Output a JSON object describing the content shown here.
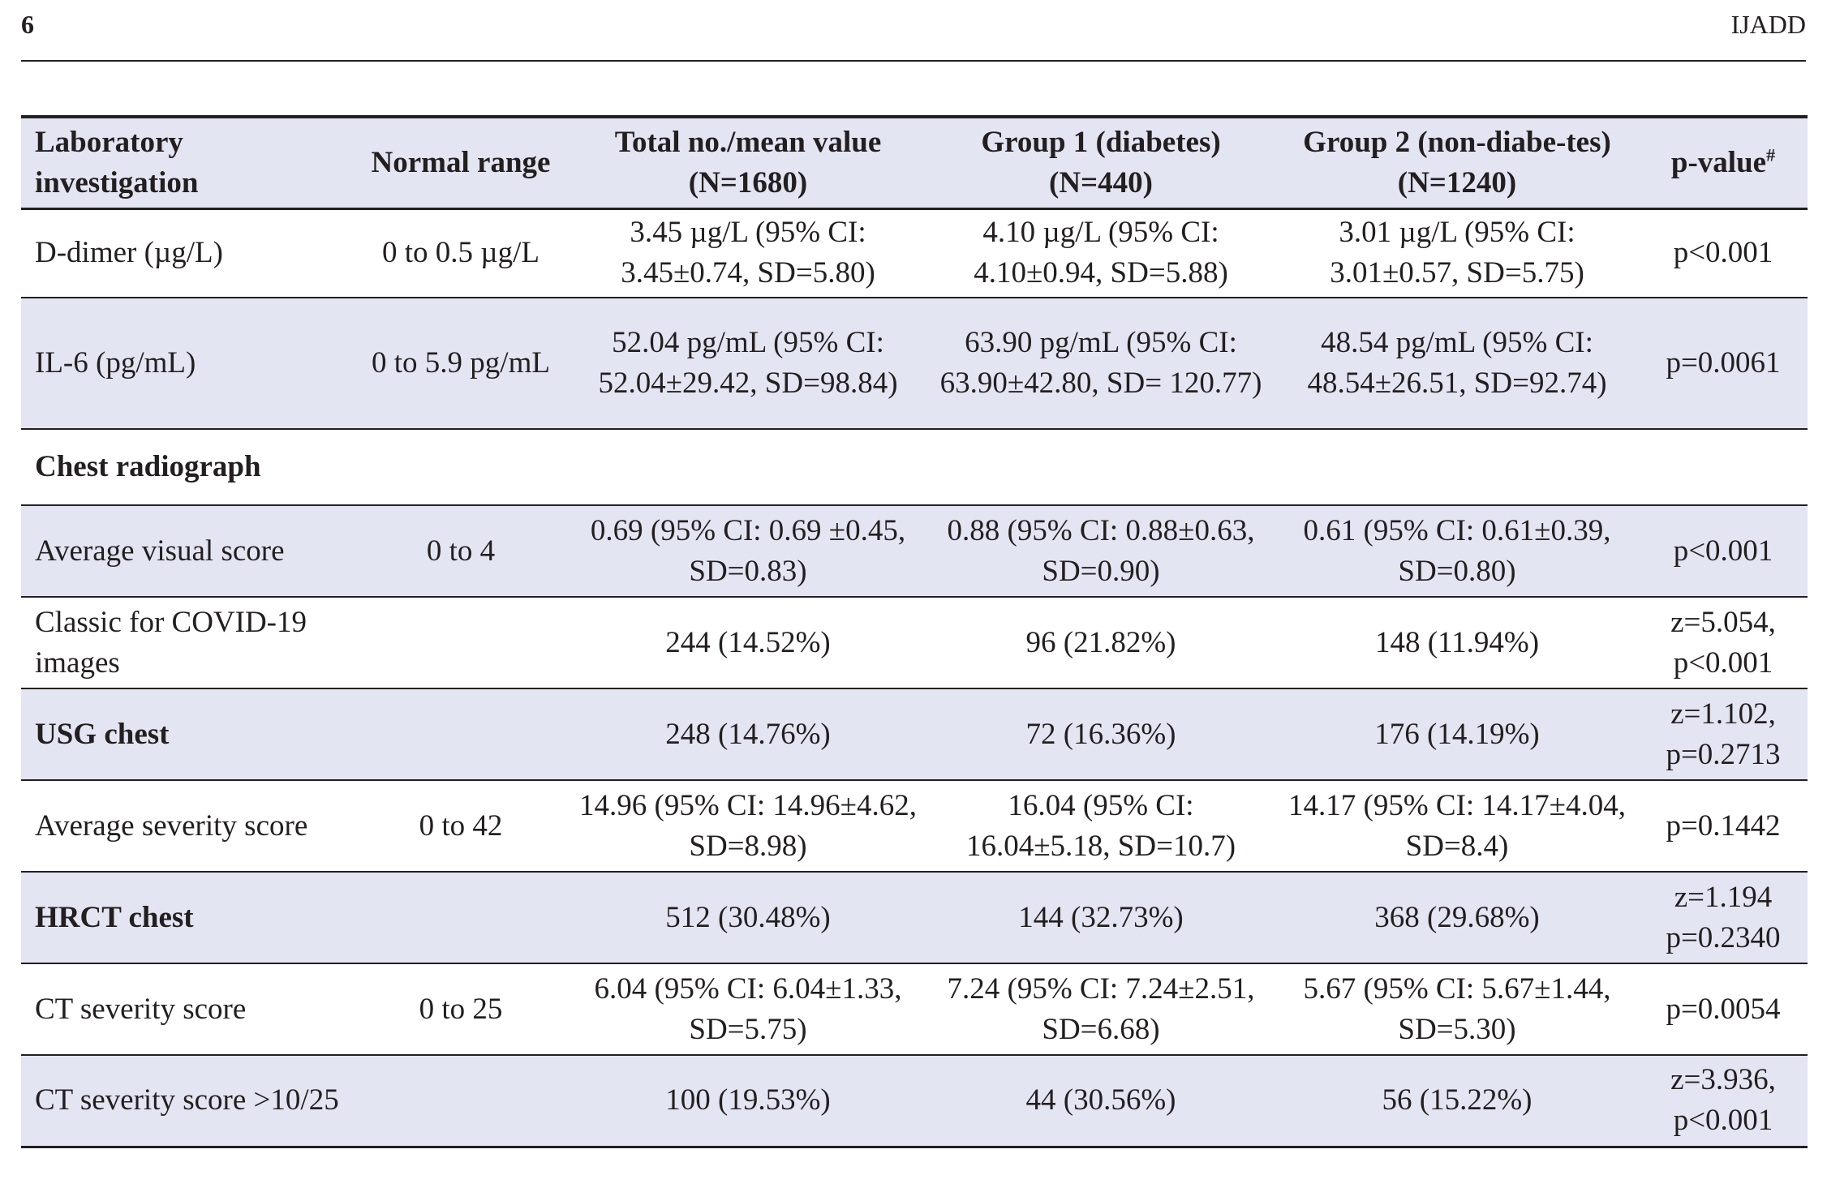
{
  "header": {
    "page_number": "6",
    "journal": "IJADD"
  },
  "table": {
    "columns": [
      "Laboratory investigation",
      "Normal range",
      "Total no./mean value (N=1680)",
      "Group 1 (diabetes) (N=440)",
      "Group 2 (non-diabe-tes) (N=1240)",
      "p-value"
    ],
    "pvalue_mark": "#",
    "rows": [
      {
        "label": "D-dimer (µg/L)",
        "range": "0 to 0.5 µg/L",
        "total": "3.45 µg/L (95% CI: 3.45±0.74, SD=5.80)",
        "g1": "4.10 µg/L (95% CI: 4.10±0.94, SD=5.88)",
        "g2": "3.01 µg/L (95% CI: 3.01±0.57, SD=5.75)",
        "p": "p<0.001"
      },
      {
        "label": "IL-6 (pg/mL)",
        "range": "0 to 5.9 pg/mL",
        "total": "52.04 pg/mL (95% CI: 52.04±29.42, SD=98.84)",
        "g1": "63.90 pg/mL (95% CI: 63.90±42.80, SD= 120.77)",
        "g2": "48.54 pg/mL (95% CI: 48.54±26.51, SD=92.74)",
        "p": "p=0.0061"
      },
      {
        "section": "Chest radiograph"
      },
      {
        "label": "Average visual score",
        "range": "0 to 4",
        "total": "0.69 (95% CI: 0.69 ±0.45, SD=0.83)",
        "g1": "0.88 (95% CI: 0.88±0.63, SD=0.90)",
        "g2": "0.61 (95% CI: 0.61±0.39, SD=0.80)",
        "p": "p<0.001"
      },
      {
        "label": "Classic for COVID-19 images",
        "range": "",
        "total": "244 (14.52%)",
        "g1": "96 (21.82%)",
        "g2": "148 (11.94%)",
        "p": "z=5.054, p<0.001"
      },
      {
        "label": "USG chest",
        "range": "",
        "total": "248 (14.76%)",
        "g1": "72 (16.36%)",
        "g2": "176 (14.19%)",
        "p": "z=1.102, p=0.2713"
      },
      {
        "label": "Average severity score",
        "range": "0 to 42",
        "total": "14.96 (95% CI: 14.96±4.62, SD=8.98)",
        "g1": "16.04 (95% CI: 16.04±5.18, SD=10.7)",
        "g2": "14.17 (95% CI: 14.17±4.04, SD=8.4)",
        "p": "p=0.1442"
      },
      {
        "label": "HRCT chest",
        "range": "",
        "total": "512 (30.48%)",
        "g1": "144 (32.73%)",
        "g2": "368 (29.68%)",
        "p": "z=1.194 p=0.2340"
      },
      {
        "label": "CT severity score",
        "range": "0 to 25",
        "total": "6.04 (95% CI: 6.04±1.33, SD=5.75)",
        "g1": "7.24 (95% CI: 7.24±2.51, SD=6.68)",
        "g2": "5.67 (95% CI: 5.67±1.44, SD=5.30)",
        "p": "p=0.0054"
      },
      {
        "label": "CT severity score >10/25",
        "range": "",
        "total": "100 (19.53%)",
        "g1": "44 (30.56%)",
        "g2": "56 (15.22%)",
        "p": "z=3.936, p<0.001"
      }
    ]
  }
}
